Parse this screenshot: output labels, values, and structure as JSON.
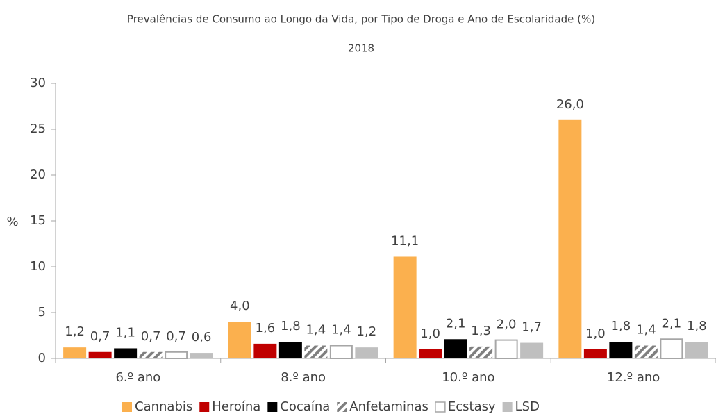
{
  "chart_data": {
    "type": "bar",
    "title": "Prevalências de Consumo ao Longo da Vida, por Tipo de Droga e Ano de Escolaridade (%)",
    "subtitle": "2018",
    "y_label": "%",
    "categories": [
      "6.º ano",
      "8.º ano",
      "10.º ano",
      "12.º ano"
    ],
    "series": [
      {
        "name": "Cannabis",
        "color": "#fbb04e",
        "values": [
          1.2,
          4.0,
          11.1,
          26.0
        ],
        "value_labels": [
          "1,2",
          "4,0",
          "11,1",
          "26,0"
        ]
      },
      {
        "name": "Heroína",
        "color": "#c00000",
        "values": [
          0.7,
          1.6,
          1.0,
          1.0
        ],
        "value_labels": [
          "0,7",
          "1,6",
          "1,0",
          "1,0"
        ]
      },
      {
        "name": "Cocaína",
        "color": "#000000",
        "values": [
          1.1,
          1.8,
          2.1,
          1.8
        ],
        "value_labels": [
          "1,1",
          "1,8",
          "2,1",
          "1,8"
        ]
      },
      {
        "name": "Anfetaminas",
        "color": "#7f7f7f",
        "hatch": true,
        "values": [
          0.7,
          1.4,
          1.3,
          1.4
        ],
        "value_labels": [
          "0,7",
          "1,4",
          "1,3",
          "1,4"
        ]
      },
      {
        "name": "Ecstasy",
        "color": "#ffffff",
        "edgecolor": "#a6a6a6",
        "values": [
          0.7,
          1.4,
          2.0,
          2.1
        ],
        "value_labels": [
          "0,7",
          "1,4",
          "2,0",
          "2,1"
        ]
      },
      {
        "name": "LSD",
        "color": "#bfbfbf",
        "values": [
          0.6,
          1.2,
          1.7,
          1.8
        ],
        "value_labels": [
          "0,6",
          "1,2",
          "1,7",
          "1,8"
        ]
      }
    ],
    "ylim": [
      0,
      30
    ],
    "yticks": [
      0,
      5,
      10,
      15,
      20,
      25,
      30
    ],
    "grid": false,
    "legend": "bottom"
  }
}
